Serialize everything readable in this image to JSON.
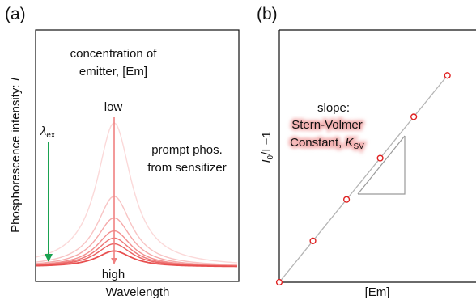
{
  "chart_data": [
    {
      "panel_label": "(a)",
      "type": "line",
      "xlabel": "Wavelength",
      "ylabel": "Phosphorescence intensity: ",
      "ylabel_symbol": "I",
      "grid": false,
      "annotations": {
        "concentration_line1": "concentration of",
        "concentration_line2": "emitter, [Em]",
        "low": "low",
        "high": "high",
        "prompt_line1": "prompt phos.",
        "prompt_line2": "from sensitizer",
        "excitation_symbol": "λ",
        "excitation_subscript": "ex"
      },
      "series": [
        {
          "peak_height": 1.0,
          "color": "#fbd9d9"
        },
        {
          "peak_height": 0.49,
          "color": "#f8c4c4"
        },
        {
          "peak_height": 0.34,
          "color": "#f5a8a8"
        },
        {
          "peak_height": 0.25,
          "color": "#f28e8e"
        },
        {
          "peak_height": 0.2,
          "color": "#ee7676"
        },
        {
          "peak_height": 0.16,
          "color": "#ea6262"
        },
        {
          "peak_height": 0.11,
          "color": "#e85050"
        }
      ],
      "colors": {
        "excitation_arrow": "#1aa251",
        "concentration_arrow": "#f08080"
      }
    },
    {
      "panel_label": "(b)",
      "type": "scatter",
      "xlabel": "[Em]",
      "ylabel_base": "I",
      "ylabel_sub": "0",
      "ylabel_rest": "/I −1",
      "grid": false,
      "annotations": {
        "slope_line1": "slope:",
        "slope_line2": "Stern-Volmer",
        "slope_line3": "Constant, ",
        "slope_symbol": "K",
        "slope_subscript": "SV"
      },
      "points": [
        {
          "x": 0.0,
          "y": 0.0
        },
        {
          "x": 0.2,
          "y": 0.2
        },
        {
          "x": 0.4,
          "y": 0.4
        },
        {
          "x": 0.6,
          "y": 0.6
        },
        {
          "x": 0.8,
          "y": 0.8
        },
        {
          "x": 1.0,
          "y": 1.0
        }
      ],
      "xlim": [
        0,
        1.17
      ],
      "ylim": [
        0,
        1.22
      ],
      "colors": {
        "marker": "#e02020",
        "fit_line": "#b5b5b5",
        "slope_highlight": "#f3b0b0"
      }
    }
  ]
}
